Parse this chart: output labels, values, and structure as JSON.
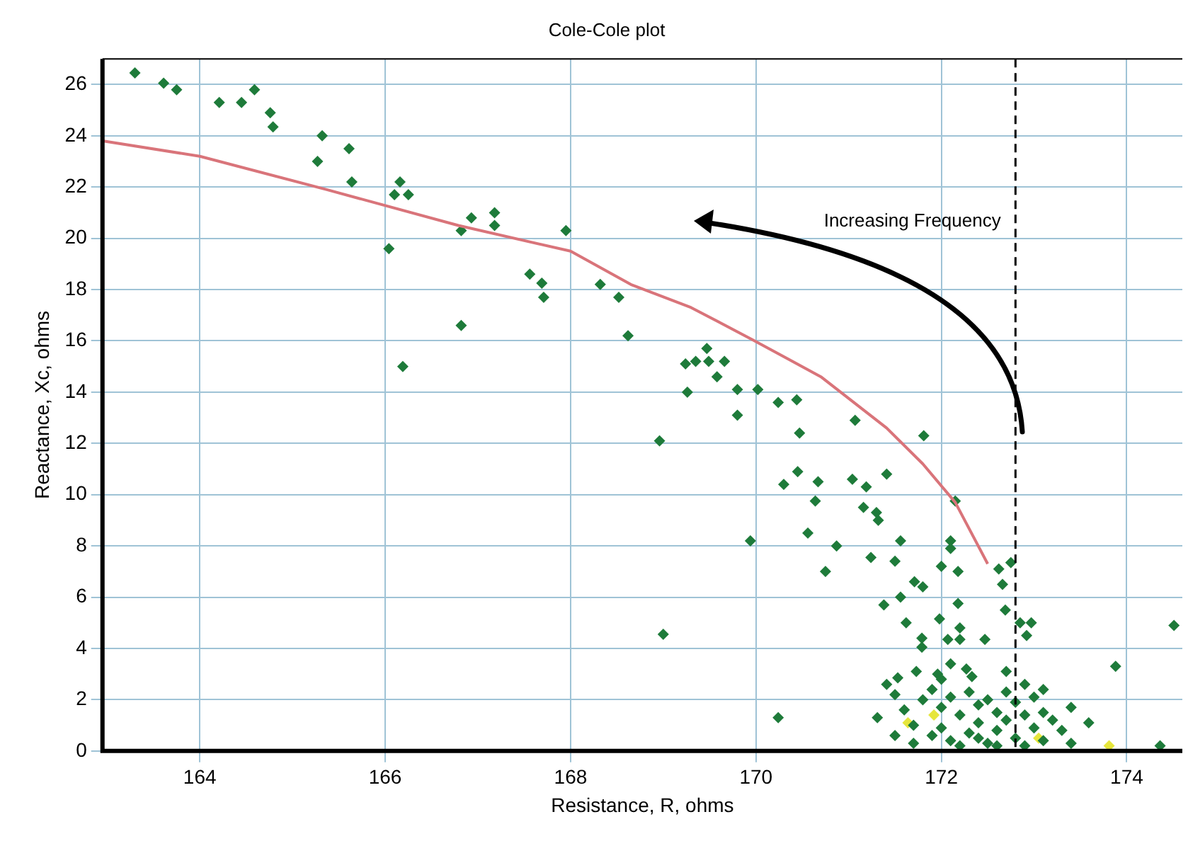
{
  "chart_data": {
    "type": "scatter",
    "title": "Cole-Cole plot",
    "xlabel": "Resistance, R, ohms",
    "ylabel": "Reactance, Xc, ohms",
    "xlim": [
      162.95,
      174.6
    ],
    "xticks": [
      164,
      166,
      168,
      170,
      172,
      174
    ],
    "ylim": [
      0,
      27
    ],
    "yticks": [
      0,
      2,
      4,
      6,
      8,
      10,
      12,
      14,
      16,
      18,
      20,
      22,
      24,
      26
    ],
    "grid": true,
    "legend": false,
    "marker": "diamond",
    "ref_lines": [
      {
        "axis": "x",
        "value": 172.8,
        "color": "#000000",
        "line_style": "dashed"
      }
    ],
    "annotations": [
      "Increasing Frequency"
    ],
    "series": [
      {
        "type": "scatter",
        "color": "#1e7b3a",
        "x": [
          163.3,
          163.61,
          163.75,
          164.21,
          164.45,
          164.59,
          164.76,
          164.79,
          165.32,
          165.61,
          165.27,
          165.64,
          166.16,
          166.1,
          166.25,
          166.04,
          166.19,
          166.93,
          166.82,
          167.18,
          167.18,
          166.82,
          167.95,
          167.56,
          167.69,
          167.71,
          168.32,
          168.52,
          168.62,
          169.47,
          169.24,
          169.35,
          169.49,
          169.66,
          169.58,
          169.26,
          169.8,
          170.02,
          169.8,
          170.24,
          170.44,
          171.07,
          171.81,
          168.96,
          170.47,
          170.45,
          170.3,
          170.67,
          170.64,
          171.04,
          171.19,
          171.41,
          171.16,
          171.3,
          171.32,
          170.56,
          169.94,
          170.87,
          171.24,
          171.56,
          171.5,
          170.75,
          172.1,
          172.1,
          172.0,
          172.18,
          171.71,
          171.8,
          172.15,
          172.62,
          172.75,
          172.66,
          171.38,
          171.56,
          172.18,
          172.69,
          171.62,
          171.98,
          172.2,
          171.79,
          171.79,
          172.07,
          172.2,
          172.47,
          172.85,
          172.97,
          172.92,
          169.0,
          173.88,
          174.51,
          171.73,
          172.1,
          171.96,
          172.27,
          172.33,
          172.7,
          171.41,
          171.53,
          170.24,
          171.31,
          173.4,
          173.59,
          174.36,
          171.5,
          171.6,
          171.7,
          171.8,
          171.9,
          172.0,
          172.0,
          172.1,
          172.1,
          172.2,
          172.3,
          172.3,
          172.4,
          172.4,
          172.5,
          172.5,
          172.6,
          172.6,
          172.7,
          172.7,
          172.8,
          172.8,
          172.9,
          172.9,
          173.0,
          173.0,
          173.1,
          173.1,
          173.2,
          173.3,
          171.7,
          171.9,
          172.2,
          172.4,
          172.6,
          172.9,
          173.1,
          173.4,
          171.5,
          172.0
        ],
        "values": [
          26.45,
          26.05,
          25.8,
          25.3,
          25.3,
          25.8,
          24.9,
          24.35,
          24.0,
          23.5,
          23.0,
          22.2,
          22.2,
          21.7,
          21.7,
          19.6,
          15.0,
          20.8,
          20.3,
          21.0,
          20.5,
          16.6,
          20.3,
          18.6,
          18.25,
          17.7,
          18.2,
          17.7,
          16.2,
          15.7,
          15.1,
          15.2,
          15.2,
          15.2,
          14.6,
          14.0,
          14.1,
          14.1,
          13.1,
          13.6,
          13.7,
          12.9,
          12.3,
          12.1,
          12.4,
          10.9,
          10.4,
          10.5,
          9.75,
          10.6,
          10.3,
          10.8,
          9.5,
          9.3,
          9.0,
          8.5,
          8.2,
          8.0,
          7.55,
          8.2,
          7.4,
          7.0,
          8.2,
          7.9,
          7.2,
          7.0,
          6.6,
          6.4,
          9.75,
          7.1,
          7.35,
          6.5,
          5.7,
          6.0,
          5.75,
          5.5,
          5.0,
          5.15,
          4.8,
          4.4,
          4.05,
          4.35,
          4.35,
          4.35,
          5.0,
          5.0,
          4.5,
          4.55,
          3.3,
          4.9,
          3.1,
          3.4,
          3.0,
          3.2,
          2.9,
          3.1,
          2.6,
          2.85,
          1.3,
          1.3,
          1.7,
          1.1,
          0.2,
          2.2,
          1.6,
          1.0,
          2.0,
          2.4,
          1.7,
          0.9,
          2.1,
          0.4,
          1.4,
          2.3,
          0.7,
          1.8,
          1.1,
          0.3,
          2.0,
          1.5,
          0.8,
          2.3,
          1.2,
          0.5,
          1.9,
          2.6,
          1.4,
          0.9,
          2.1,
          1.5,
          0.4,
          1.2,
          0.8,
          0.3,
          0.6,
          0.2,
          0.5,
          0.2,
          0.2,
          2.4,
          0.3,
          0.6,
          2.8
        ]
      },
      {
        "type": "scatter",
        "color": "#e6e63c",
        "x": [
          171.64,
          171.92,
          173.81,
          173.05
        ],
        "values": [
          1.1,
          1.4,
          0.2,
          0.5
        ]
      },
      {
        "type": "line",
        "color": "#d9747a",
        "marker": "none",
        "x": [
          162.95,
          164.0,
          165.37,
          166.79,
          168.0,
          168.65,
          169.3,
          169.96,
          170.7,
          171.41,
          171.8,
          172.15,
          172.5
        ],
        "values": [
          23.8,
          23.2,
          21.9,
          20.5,
          19.5,
          18.2,
          17.3,
          16.05,
          14.6,
          12.6,
          11.2,
          9.7,
          7.3
        ]
      }
    ]
  }
}
